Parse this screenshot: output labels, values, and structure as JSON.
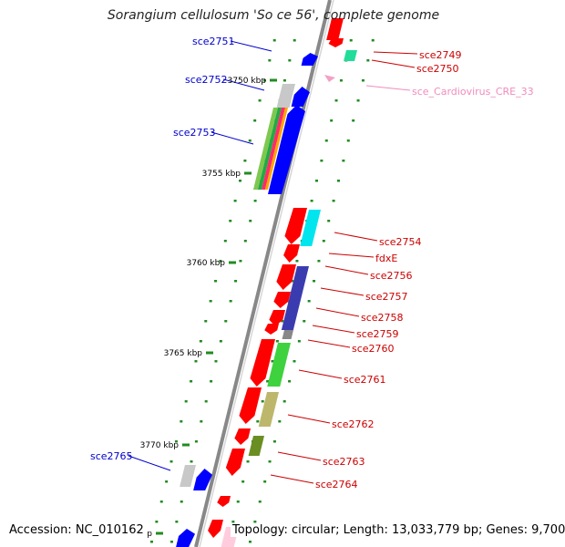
{
  "title": "Sorangium cellulosum 'So ce 56', complete genome",
  "footer": {
    "accession": "Accession: NC_010162",
    "topology": "Topology: circular; Length: 13,033,779 bp; Genes: 9,700"
  },
  "colors": {
    "backbone": "#888888",
    "tick": "#228B22",
    "forward_gene": "#0000ff",
    "reverse_gene": "#ff0000",
    "label_forward": "#0000cc",
    "label_reverse": "#cc0000",
    "label_rna": "#f08cbc",
    "ruler_text": "#000000"
  },
  "ruler_labels": [
    "3750 kbp",
    "3755 kbp",
    "3760 kbp",
    "3765 kbp",
    "3770 kbp",
    "kbp"
  ],
  "gene_labels_left": [
    "sce2751",
    "sce2752",
    "sce2753",
    "sce2765"
  ],
  "gene_labels_right": [
    "sce2749",
    "sce2750",
    "sce_Cardiovirus_CRE_33",
    "sce2754",
    "fdxE",
    "sce2756",
    "sce2757",
    "sce2758",
    "sce2759",
    "sce2760",
    "sce2761",
    "sce2762",
    "sce2763",
    "sce2764"
  ]
}
